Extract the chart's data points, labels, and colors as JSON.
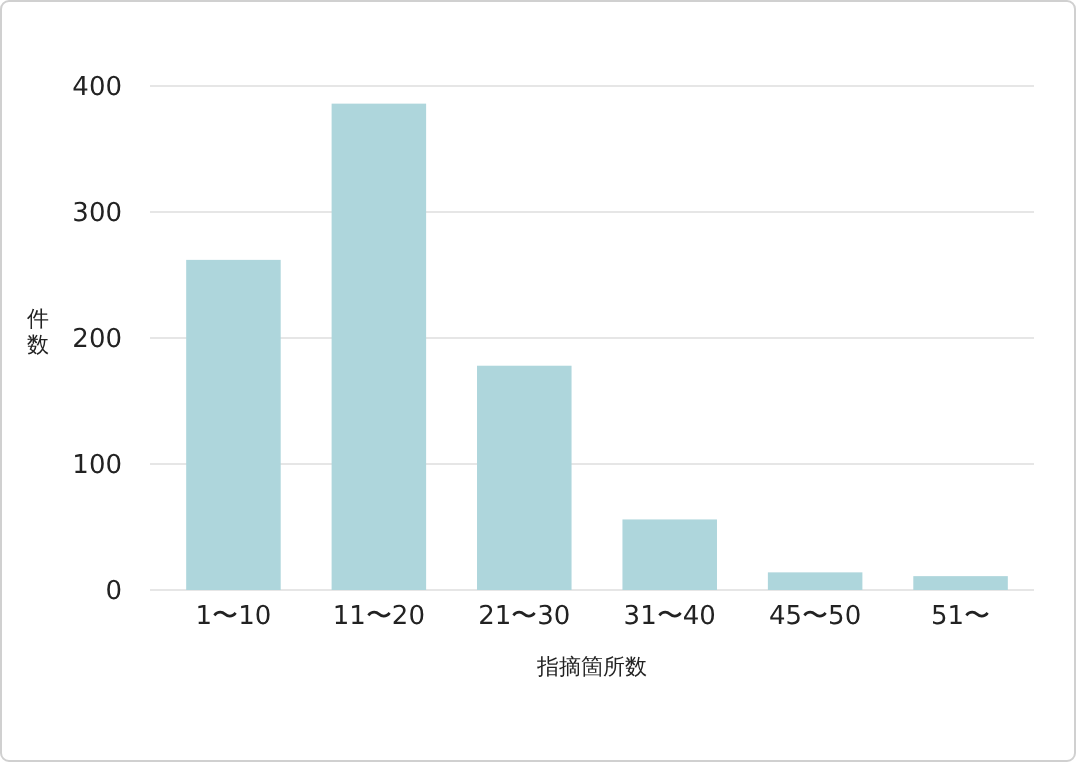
{
  "chart_data": {
    "type": "bar",
    "xlabel": "指摘箇所数",
    "ylabel": "件数",
    "categories": [
      "1〜10",
      "11〜20",
      "21〜30",
      "31〜40",
      "45〜50",
      "51〜"
    ],
    "values": [
      262,
      386,
      178,
      56,
      14,
      11
    ],
    "color": "#aed6dc",
    "ylim": [
      0,
      400
    ],
    "yticks": [
      0,
      100,
      200,
      300,
      400
    ],
    "grid": "y"
  }
}
